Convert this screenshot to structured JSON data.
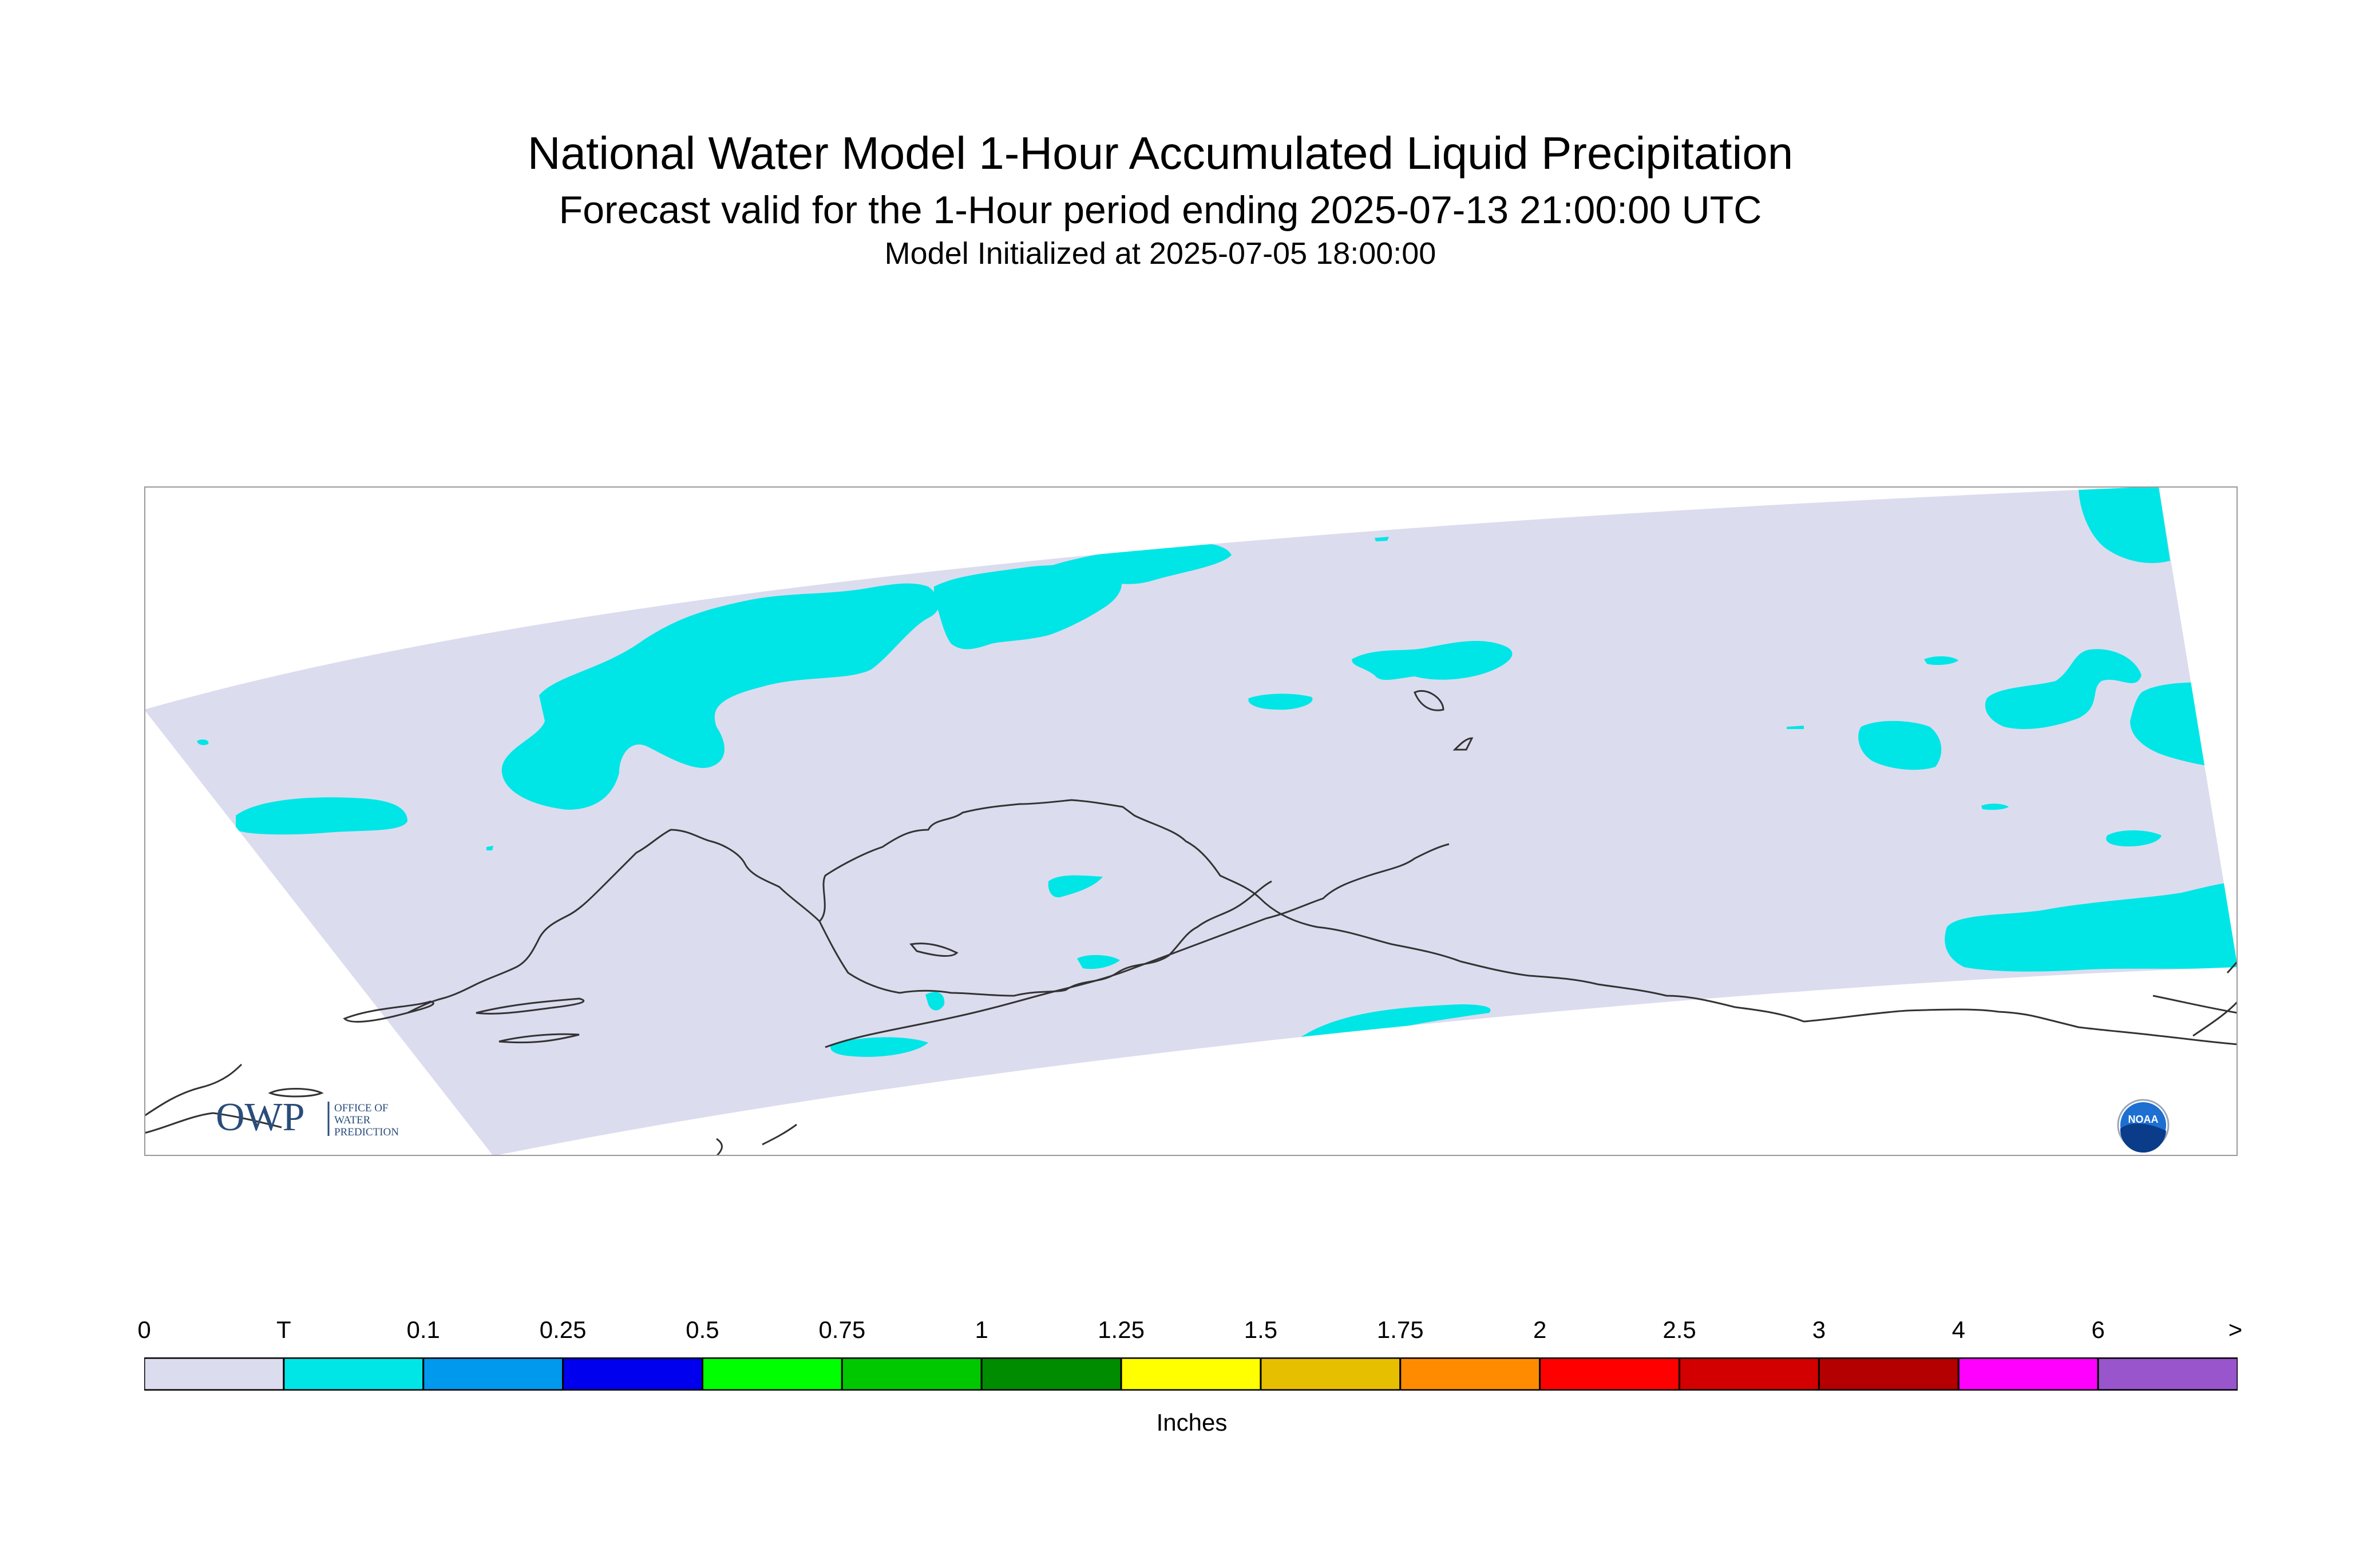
{
  "header": {
    "title": "National Water Model 1-Hour Accumulated Liquid Precipitation",
    "subtitle": "Forecast valid for the 1-Hour period ending 2025-07-13 21:00:00 UTC",
    "init": "Model Initialized at 2025-07-05 18:00:00"
  },
  "logos": {
    "owp_text": "OWP",
    "owp_line1": "OFFICE OF",
    "owp_line2": "WATER",
    "owp_line3": "PREDICTION",
    "noaa_text": "NOAA"
  },
  "colors": {
    "domain_fill": "#dcdcef",
    "trace": "#00e6e6",
    "coastline": "#333333",
    "frame": "#999999"
  },
  "legend": {
    "units": "Inches",
    "ticks": [
      "0",
      "T",
      "0.1",
      "0.25",
      "0.5",
      "0.75",
      "1",
      "1.25",
      "1.5",
      "1.75",
      "2",
      "2.5",
      "3",
      "4",
      "6",
      ">"
    ],
    "colors": [
      "#dcdcef",
      "#00e6e6",
      "#0099ee",
      "#0000ee",
      "#00ff00",
      "#00c800",
      "#008c00",
      "#ffff00",
      "#e6bf00",
      "#ff8c00",
      "#ff0000",
      "#d20000",
      "#b40000",
      "#ff00ff",
      "#9955cc"
    ]
  }
}
